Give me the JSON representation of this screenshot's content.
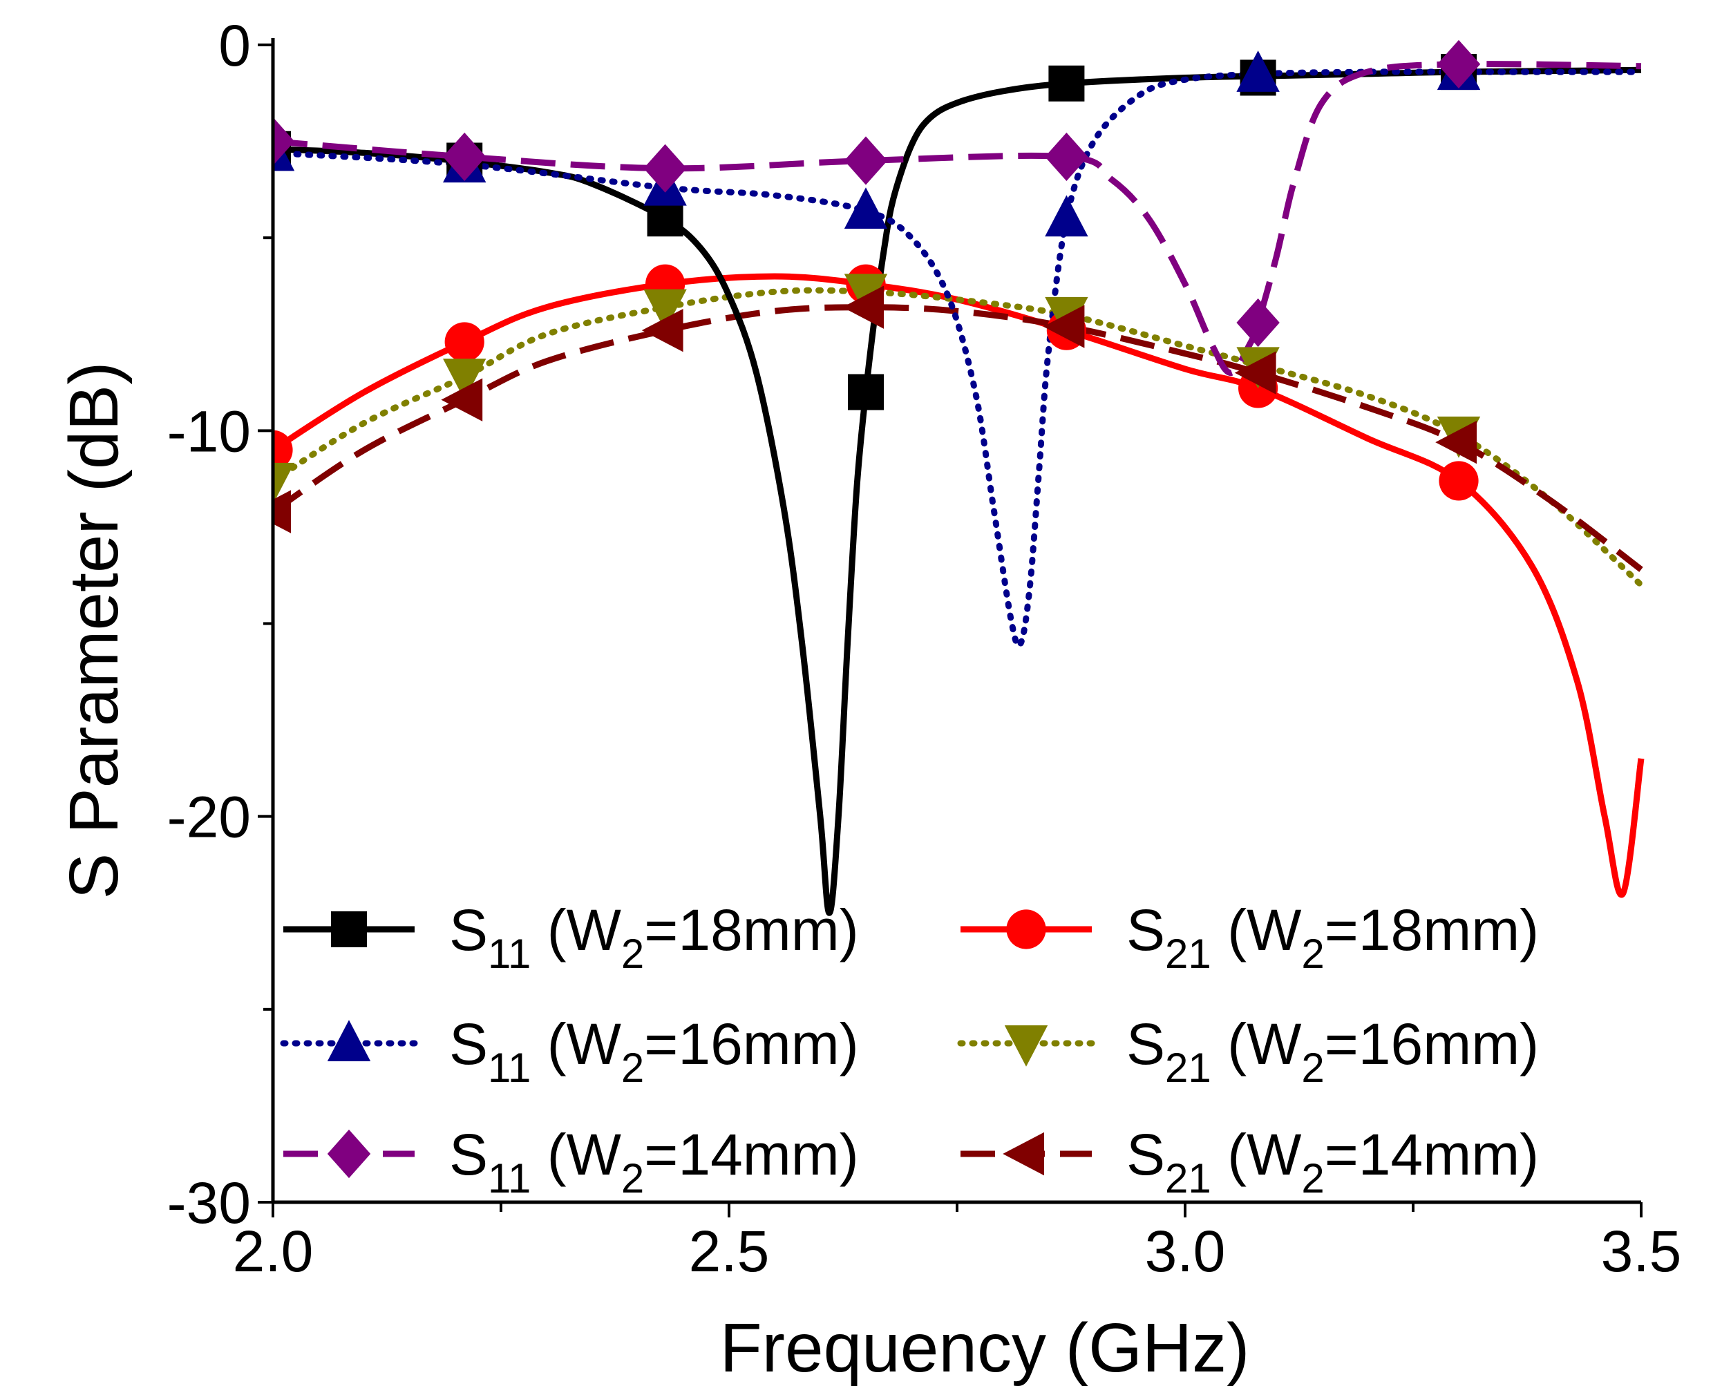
{
  "chart_data": {
    "type": "line",
    "title": "",
    "xlabel": "Frequency (GHz)",
    "ylabel": "S Parameter (dB)",
    "xlim": [
      2.0,
      3.5
    ],
    "ylim": [
      -30,
      0
    ],
    "xticks": [
      2.0,
      2.5,
      3.0,
      3.5
    ],
    "xtick_labels": [
      "2.0",
      "2.5",
      "3.0",
      "3.5"
    ],
    "yticks": [
      0,
      -10,
      -20,
      -30
    ],
    "ytick_labels": [
      "0",
      "-10",
      "-20",
      "-30"
    ],
    "grid": false,
    "legend_position": "bottom-left, two columns",
    "series": [
      {
        "name": "S11 (W2=18mm)",
        "param": "S",
        "param_sub": "11",
        "w_label": " (W",
        "w_sub": "2",
        "w_value": "=18mm)",
        "color": "#000000",
        "dash": "solid",
        "marker": "square",
        "x": [
          2.0,
          2.1,
          2.2,
          2.3,
          2.35,
          2.43,
          2.47,
          2.5,
          2.53,
          2.56,
          2.58,
          2.6,
          2.61,
          2.62,
          2.63,
          2.64,
          2.65,
          2.66,
          2.67,
          2.68,
          2.7,
          2.72,
          2.75,
          2.8,
          2.87,
          3.0,
          3.1,
          3.2,
          3.3,
          3.5
        ],
        "y": [
          -2.7,
          -2.8,
          -3.0,
          -3.3,
          -3.6,
          -4.5,
          -5.3,
          -6.5,
          -8.5,
          -12.0,
          -15.5,
          -20.0,
          -22.5,
          -20.0,
          -15.5,
          -11.5,
          -9.0,
          -7.0,
          -5.3,
          -4.0,
          -2.6,
          -1.9,
          -1.5,
          -1.2,
          -1.0,
          -0.85,
          -0.8,
          -0.75,
          -0.7,
          -0.65
        ],
        "marker_x": [
          2.0,
          2.21,
          2.43,
          2.65,
          2.87,
          3.08,
          3.3
        ],
        "marker_y": [
          -2.7,
          -3.0,
          -4.5,
          -9.0,
          -1.0,
          -0.85,
          -0.7
        ]
      },
      {
        "name": "S21 (W2=18mm)",
        "param": "S",
        "param_sub": "21",
        "w_label": " (W",
        "w_sub": "2",
        "w_value": "=18mm)",
        "color": "#ff0000",
        "dash": "solid",
        "marker": "circle",
        "x": [
          2.0,
          2.1,
          2.21,
          2.3,
          2.43,
          2.55,
          2.65,
          2.75,
          2.87,
          3.0,
          3.08,
          3.2,
          3.3,
          3.38,
          3.43,
          3.46,
          3.48,
          3.5
        ],
        "y": [
          -10.5,
          -9.0,
          -7.7,
          -6.8,
          -6.2,
          -6.0,
          -6.2,
          -6.6,
          -7.4,
          -8.4,
          -8.9,
          -10.2,
          -11.3,
          -13.5,
          -16.5,
          -20.0,
          -22.0,
          -18.5
        ],
        "marker_x": [
          2.0,
          2.21,
          2.43,
          2.65,
          2.87,
          3.08,
          3.3
        ],
        "marker_y": [
          -10.5,
          -7.7,
          -6.2,
          -6.2,
          -7.4,
          -8.9,
          -11.3
        ]
      },
      {
        "name": "S11 (W2=16mm)",
        "param": "S",
        "param_sub": "11",
        "w_label": " (W",
        "w_sub": "2",
        "w_value": "=16mm)",
        "color": "#00008b",
        "dash": "dotted",
        "marker": "triangle-up",
        "x": [
          2.0,
          2.21,
          2.43,
          2.55,
          2.65,
          2.7,
          2.74,
          2.77,
          2.79,
          2.81,
          2.82,
          2.83,
          2.84,
          2.85,
          2.87,
          2.9,
          2.95,
          3.0,
          3.08,
          3.2,
          3.3,
          3.5
        ],
        "y": [
          -2.8,
          -3.1,
          -3.7,
          -3.9,
          -4.3,
          -5.0,
          -6.5,
          -9.0,
          -12.0,
          -15.0,
          -15.5,
          -14.0,
          -11.0,
          -8.0,
          -4.5,
          -2.5,
          -1.3,
          -0.9,
          -0.75,
          -0.7,
          -0.7,
          -0.7
        ],
        "marker_x": [
          2.0,
          2.21,
          2.43,
          2.65,
          2.87,
          3.08,
          3.3
        ],
        "marker_y": [
          -2.8,
          -3.1,
          -3.7,
          -4.3,
          -4.5,
          -0.75,
          -0.7
        ]
      },
      {
        "name": "S21 (W2=16mm)",
        "param": "S",
        "param_sub": "21",
        "w_label": " (W",
        "w_sub": "2",
        "w_value": "=16mm)",
        "color": "#808000",
        "dash": "dotted",
        "marker": "triangle-down",
        "x": [
          2.0,
          2.1,
          2.21,
          2.3,
          2.43,
          2.55,
          2.65,
          2.75,
          2.87,
          3.0,
          3.08,
          3.2,
          3.3,
          3.4,
          3.5
        ],
        "y": [
          -11.3,
          -9.8,
          -8.6,
          -7.5,
          -6.8,
          -6.4,
          -6.4,
          -6.6,
          -7.0,
          -7.8,
          -8.3,
          -9.1,
          -10.1,
          -11.8,
          -14.0
        ],
        "marker_x": [
          2.0,
          2.21,
          2.43,
          2.65,
          2.87,
          3.08,
          3.3
        ],
        "marker_y": [
          -11.3,
          -8.6,
          -6.8,
          -6.4,
          -7.0,
          -8.3,
          -10.1
        ]
      },
      {
        "name": "S11 (W2=14mm)",
        "param": "S",
        "param_sub": "11",
        "w_label": " (W",
        "w_sub": "2",
        "w_value": "=14mm)",
        "color": "#800080",
        "dash": "dashed",
        "marker": "diamond",
        "x": [
          2.0,
          2.21,
          2.43,
          2.65,
          2.87,
          2.92,
          2.96,
          3.0,
          3.03,
          3.05,
          3.07,
          3.08,
          3.1,
          3.12,
          3.15,
          3.2,
          3.3,
          3.5
        ],
        "y": [
          -2.5,
          -2.9,
          -3.2,
          -3.0,
          -2.9,
          -3.5,
          -4.5,
          -6.2,
          -7.8,
          -8.5,
          -7.8,
          -7.2,
          -5.5,
          -3.5,
          -1.5,
          -0.7,
          -0.5,
          -0.55
        ],
        "marker_x": [
          2.0,
          2.21,
          2.43,
          2.65,
          2.87,
          3.08,
          3.3
        ],
        "marker_y": [
          -2.5,
          -2.9,
          -3.2,
          -3.0,
          -2.9,
          -7.2,
          -0.5
        ]
      },
      {
        "name": "S21 (W2=14mm)",
        "param": "S",
        "param_sub": "21",
        "w_label": " (W",
        "w_sub": "2",
        "w_value": "=14mm)",
        "color": "#800000",
        "dash": "dashed",
        "marker": "triangle-left",
        "x": [
          2.0,
          2.1,
          2.21,
          2.3,
          2.43,
          2.55,
          2.65,
          2.75,
          2.87,
          3.0,
          3.08,
          3.2,
          3.3,
          3.4,
          3.5
        ],
        "y": [
          -12.1,
          -10.5,
          -9.2,
          -8.2,
          -7.4,
          -6.9,
          -6.8,
          -6.9,
          -7.3,
          -8.0,
          -8.5,
          -9.4,
          -10.3,
          -11.8,
          -13.6
        ],
        "marker_x": [
          2.0,
          2.21,
          2.43,
          2.65,
          2.87,
          3.08,
          3.3
        ],
        "marker_y": [
          -12.1,
          -9.2,
          -7.4,
          -6.8,
          -7.3,
          -8.5,
          -10.3
        ]
      }
    ]
  }
}
